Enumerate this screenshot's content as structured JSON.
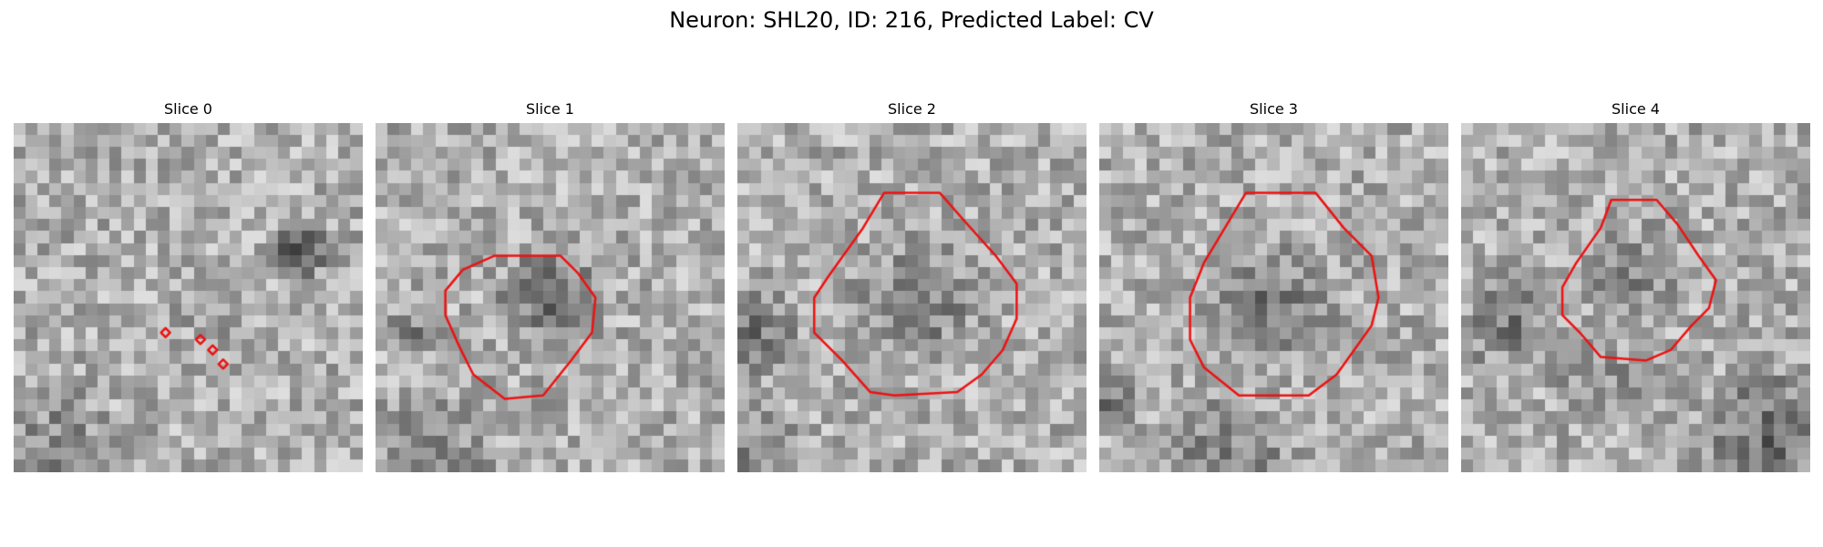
{
  "figure": {
    "title": "Neuron: SHL20, ID: 216, Predicted Label: CV",
    "contour_color": "#ee1111",
    "colormap": "grayscale"
  },
  "panels": [
    {
      "title": "Slice 0",
      "dark_regions": [
        [
          0.82,
          0.37,
          0.2,
          1.0
        ],
        [
          0.13,
          0.93,
          0.4,
          0.45
        ],
        [
          0.55,
          0.55,
          0.2,
          0.25
        ]
      ],
      "contour": [
        [
          [
            0.42,
            0.6
          ],
          [
            0.45,
            0.6
          ]
        ],
        [
          [
            0.52,
            0.62
          ],
          [
            0.55,
            0.62
          ]
        ],
        [
          [
            0.56,
            0.65
          ],
          [
            0.58,
            0.65
          ]
        ],
        [
          [
            0.59,
            0.69
          ],
          [
            0.61,
            0.69
          ]
        ]
      ],
      "closed": true
    },
    {
      "title": "Slice 1",
      "dark_regions": [
        [
          0.5,
          0.5,
          0.36,
          0.75
        ],
        [
          0.1,
          0.6,
          0.22,
          0.45
        ],
        [
          0.15,
          0.97,
          0.5,
          0.4
        ]
      ],
      "contour": [
        [
          [
            0.34,
            0.38
          ],
          [
            0.43,
            0.38
          ],
          [
            0.53,
            0.38
          ],
          [
            0.58,
            0.43
          ],
          [
            0.63,
            0.5
          ],
          [
            0.62,
            0.6
          ],
          [
            0.56,
            0.68
          ],
          [
            0.48,
            0.78
          ],
          [
            0.37,
            0.79
          ],
          [
            0.28,
            0.72
          ],
          [
            0.24,
            0.64
          ],
          [
            0.2,
            0.55
          ],
          [
            0.2,
            0.48
          ],
          [
            0.25,
            0.42
          ]
        ]
      ],
      "closed": true
    },
    {
      "title": "Slice 2",
      "dark_regions": [
        [
          0.52,
          0.52,
          0.46,
          0.5
        ],
        [
          0.05,
          0.6,
          0.3,
          0.6
        ],
        [
          0.05,
          0.95,
          0.35,
          0.5
        ]
      ],
      "contour": [
        [
          [
            0.42,
            0.2
          ],
          [
            0.58,
            0.2
          ],
          [
            0.65,
            0.28
          ],
          [
            0.74,
            0.38
          ],
          [
            0.8,
            0.46
          ],
          [
            0.8,
            0.56
          ],
          [
            0.76,
            0.65
          ],
          [
            0.7,
            0.72
          ],
          [
            0.63,
            0.77
          ],
          [
            0.45,
            0.78
          ],
          [
            0.38,
            0.77
          ],
          [
            0.3,
            0.68
          ],
          [
            0.22,
            0.6
          ],
          [
            0.22,
            0.5
          ],
          [
            0.26,
            0.44
          ],
          [
            0.36,
            0.3
          ]
        ]
      ],
      "closed": true
    },
    {
      "title": "Slice 3",
      "dark_regions": [
        [
          0.5,
          0.52,
          0.46,
          0.55
        ],
        [
          0.03,
          0.8,
          0.2,
          0.7
        ],
        [
          0.38,
          0.99,
          0.5,
          0.5
        ]
      ],
      "contour": [
        [
          [
            0.42,
            0.2
          ],
          [
            0.62,
            0.2
          ],
          [
            0.7,
            0.3
          ],
          [
            0.78,
            0.38
          ],
          [
            0.8,
            0.5
          ],
          [
            0.78,
            0.58
          ],
          [
            0.73,
            0.65
          ],
          [
            0.68,
            0.72
          ],
          [
            0.6,
            0.78
          ],
          [
            0.4,
            0.78
          ],
          [
            0.3,
            0.7
          ],
          [
            0.26,
            0.62
          ],
          [
            0.26,
            0.5
          ],
          [
            0.3,
            0.4
          ],
          [
            0.36,
            0.3
          ]
        ]
      ],
      "closed": true
    },
    {
      "title": "Slice 4",
      "dark_regions": [
        [
          0.5,
          0.45,
          0.36,
          0.4
        ],
        [
          0.14,
          0.58,
          0.36,
          0.5
        ],
        [
          0.4,
          0.74,
          0.3,
          0.35
        ],
        [
          0.9,
          0.9,
          0.5,
          0.7
        ]
      ],
      "contour": [
        [
          [
            0.43,
            0.22
          ],
          [
            0.56,
            0.22
          ],
          [
            0.62,
            0.29
          ],
          [
            0.68,
            0.38
          ],
          [
            0.73,
            0.45
          ],
          [
            0.71,
            0.53
          ],
          [
            0.66,
            0.58
          ],
          [
            0.6,
            0.65
          ],
          [
            0.53,
            0.68
          ],
          [
            0.4,
            0.67
          ],
          [
            0.34,
            0.6
          ],
          [
            0.29,
            0.55
          ],
          [
            0.29,
            0.47
          ],
          [
            0.33,
            0.4
          ],
          [
            0.4,
            0.3
          ]
        ]
      ],
      "closed": true
    }
  ]
}
